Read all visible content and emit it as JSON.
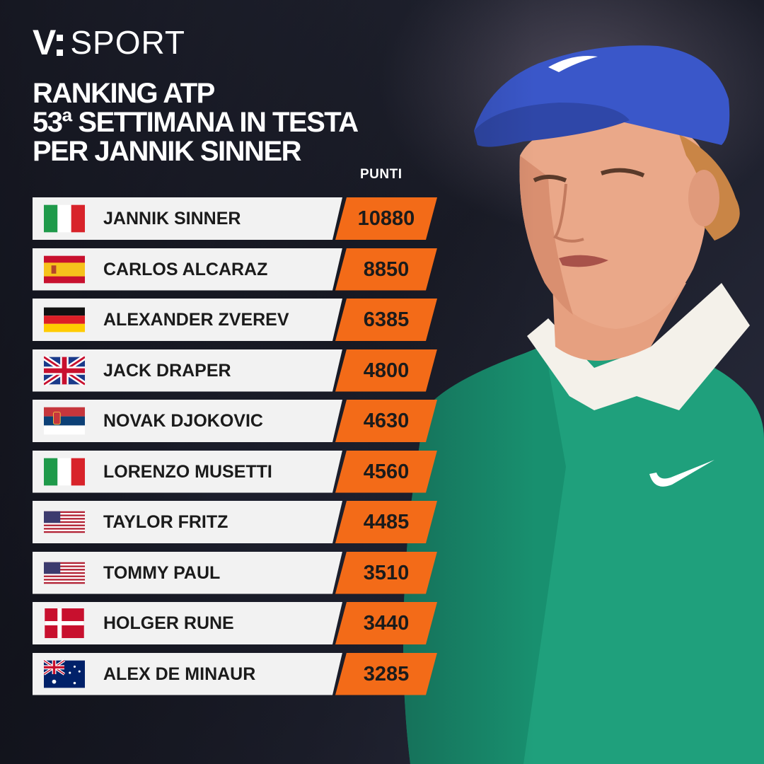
{
  "brand": {
    "logo_letter": "V",
    "logo_word": "SPORT"
  },
  "headline": {
    "line1": "RANKING ATP",
    "line2": "53ª SETTIMANA IN TESTA",
    "line3": "PER JANNIK SINNER"
  },
  "points_header": "PUNTI",
  "colors": {
    "accent": "#f36b18",
    "row_bg": "#f2f2f2",
    "text_dark": "#1b1b1b"
  },
  "ranking": [
    {
      "name": "JANNIK SINNER",
      "points": "10880",
      "flag": "italy-flag-icon"
    },
    {
      "name": "CARLOS ALCARAZ",
      "points": "8850",
      "flag": "spain-flag-icon"
    },
    {
      "name": "ALEXANDER ZVEREV",
      "points": "6385",
      "flag": "germany-flag-icon"
    },
    {
      "name": "JACK DRAPER",
      "points": "4800",
      "flag": "uk-flag-icon"
    },
    {
      "name": "NOVAK DJOKOVIC",
      "points": "4630",
      "flag": "serbia-flag-icon"
    },
    {
      "name": "LORENZO MUSETTI",
      "points": "4560",
      "flag": "italy-flag-icon"
    },
    {
      "name": "TAYLOR FRITZ",
      "points": "4485",
      "flag": "usa-flag-icon"
    },
    {
      "name": "TOMMY PAUL",
      "points": "3510",
      "flag": "usa-flag-icon"
    },
    {
      "name": "HOLGER RUNE",
      "points": "3440",
      "flag": "denmark-flag-icon"
    },
    {
      "name": "ALEX DE MINAUR",
      "points": "3285",
      "flag": "australia-flag-icon"
    }
  ]
}
